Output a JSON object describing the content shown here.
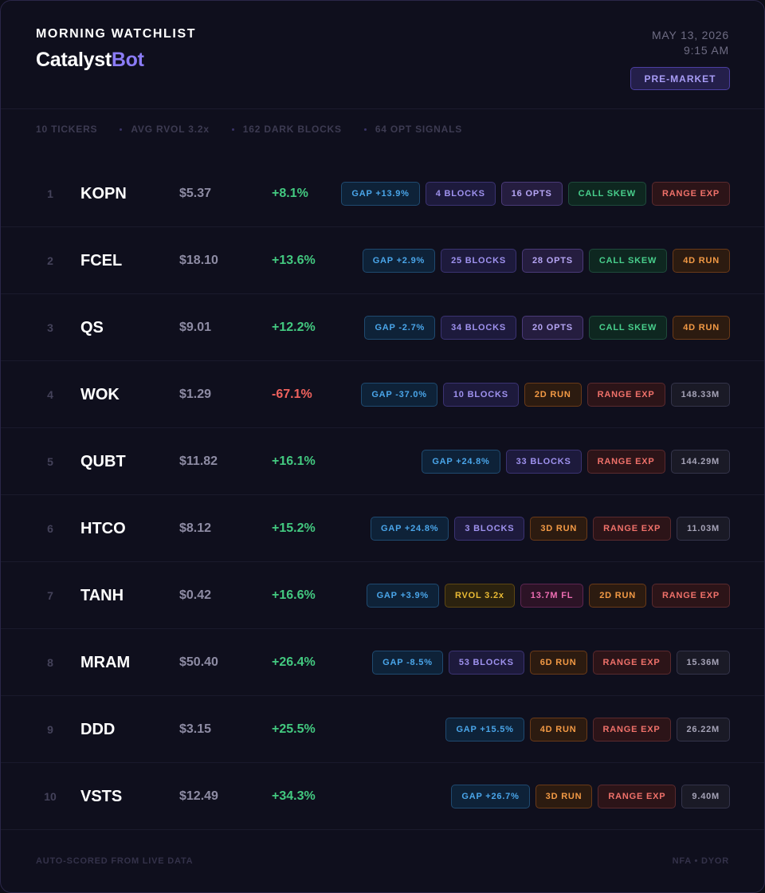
{
  "header": {
    "eyebrow": "MORNING WATCHLIST",
    "brand_primary": "Catalyst",
    "brand_accent": "Bot",
    "date": "MAY 13, 2026",
    "time": "9:15 AM",
    "session": "PRE-MARKET"
  },
  "stats": [
    "10 TICKERS",
    "AVG RVOL 3.2x",
    "162 DARK BLOCKS",
    "64 OPT SIGNALS"
  ],
  "colors": {
    "accent": "#8b7cf6",
    "up": "#43c980",
    "down": "#f0625e"
  },
  "rows": [
    {
      "rank": "1",
      "symbol": "KOPN",
      "price": "$5.37",
      "change": "+8.1%",
      "direction": "up",
      "tags": [
        {
          "text": "GAP +13.9%",
          "kind": "gap"
        },
        {
          "text": "4 BLOCKS",
          "kind": "blocks"
        },
        {
          "text": "16 OPTS",
          "kind": "opts"
        },
        {
          "text": "CALL SKEW",
          "kind": "skew"
        },
        {
          "text": "RANGE EXP",
          "kind": "range"
        }
      ]
    },
    {
      "rank": "2",
      "symbol": "FCEL",
      "price": "$18.10",
      "change": "+13.6%",
      "direction": "up",
      "tags": [
        {
          "text": "GAP +2.9%",
          "kind": "gap"
        },
        {
          "text": "25 BLOCKS",
          "kind": "blocks"
        },
        {
          "text": "28 OPTS",
          "kind": "opts"
        },
        {
          "text": "CALL SKEW",
          "kind": "skew"
        },
        {
          "text": "4D RUN",
          "kind": "run"
        }
      ]
    },
    {
      "rank": "3",
      "symbol": "QS",
      "price": "$9.01",
      "change": "+12.2%",
      "direction": "up",
      "tags": [
        {
          "text": "GAP -2.7%",
          "kind": "gap"
        },
        {
          "text": "34 BLOCKS",
          "kind": "blocks"
        },
        {
          "text": "20 OPTS",
          "kind": "opts"
        },
        {
          "text": "CALL SKEW",
          "kind": "skew"
        },
        {
          "text": "4D RUN",
          "kind": "run"
        }
      ]
    },
    {
      "rank": "4",
      "symbol": "WOK",
      "price": "$1.29",
      "change": "-67.1%",
      "direction": "down",
      "tags": [
        {
          "text": "GAP -37.0%",
          "kind": "gap"
        },
        {
          "text": "10 BLOCKS",
          "kind": "blocks"
        },
        {
          "text": "2D RUN",
          "kind": "run"
        },
        {
          "text": "RANGE EXP",
          "kind": "range"
        },
        {
          "text": "148.33M",
          "kind": "vol"
        }
      ]
    },
    {
      "rank": "5",
      "symbol": "QUBT",
      "price": "$11.82",
      "change": "+16.1%",
      "direction": "up",
      "tags": [
        {
          "text": "GAP +24.8%",
          "kind": "gap"
        },
        {
          "text": "33 BLOCKS",
          "kind": "blocks"
        },
        {
          "text": "RANGE EXP",
          "kind": "range"
        },
        {
          "text": "144.29M",
          "kind": "vol"
        }
      ]
    },
    {
      "rank": "6",
      "symbol": "HTCO",
      "price": "$8.12",
      "change": "+15.2%",
      "direction": "up",
      "tags": [
        {
          "text": "GAP +24.8%",
          "kind": "gap"
        },
        {
          "text": "3 BLOCKS",
          "kind": "blocks"
        },
        {
          "text": "3D RUN",
          "kind": "run"
        },
        {
          "text": "RANGE EXP",
          "kind": "range"
        },
        {
          "text": "11.03M",
          "kind": "vol"
        }
      ]
    },
    {
      "rank": "7",
      "symbol": "TANH",
      "price": "$0.42",
      "change": "+16.6%",
      "direction": "up",
      "tags": [
        {
          "text": "GAP +3.9%",
          "kind": "gap"
        },
        {
          "text": "RVOL 3.2x",
          "kind": "rvol"
        },
        {
          "text": "13.7M FL",
          "kind": "fl"
        },
        {
          "text": "2D RUN",
          "kind": "run"
        },
        {
          "text": "RANGE EXP",
          "kind": "range"
        }
      ]
    },
    {
      "rank": "8",
      "symbol": "MRAM",
      "price": "$50.40",
      "change": "+26.4%",
      "direction": "up",
      "tags": [
        {
          "text": "GAP -8.5%",
          "kind": "gap"
        },
        {
          "text": "53 BLOCKS",
          "kind": "blocks"
        },
        {
          "text": "6D RUN",
          "kind": "run"
        },
        {
          "text": "RANGE EXP",
          "kind": "range"
        },
        {
          "text": "15.36M",
          "kind": "vol"
        }
      ]
    },
    {
      "rank": "9",
      "symbol": "DDD",
      "price": "$3.15",
      "change": "+25.5%",
      "direction": "up",
      "tags": [
        {
          "text": "GAP +15.5%",
          "kind": "gap"
        },
        {
          "text": "4D RUN",
          "kind": "run"
        },
        {
          "text": "RANGE EXP",
          "kind": "range"
        },
        {
          "text": "26.22M",
          "kind": "vol"
        }
      ]
    },
    {
      "rank": "10",
      "symbol": "VSTS",
      "price": "$12.49",
      "change": "+34.3%",
      "direction": "up",
      "tags": [
        {
          "text": "GAP +26.7%",
          "kind": "gap"
        },
        {
          "text": "3D RUN",
          "kind": "run"
        },
        {
          "text": "RANGE EXP",
          "kind": "range"
        },
        {
          "text": "9.40M",
          "kind": "vol"
        }
      ]
    }
  ],
  "footer": {
    "left": "AUTO-SCORED FROM LIVE DATA",
    "right": "NFA • DYOR"
  }
}
